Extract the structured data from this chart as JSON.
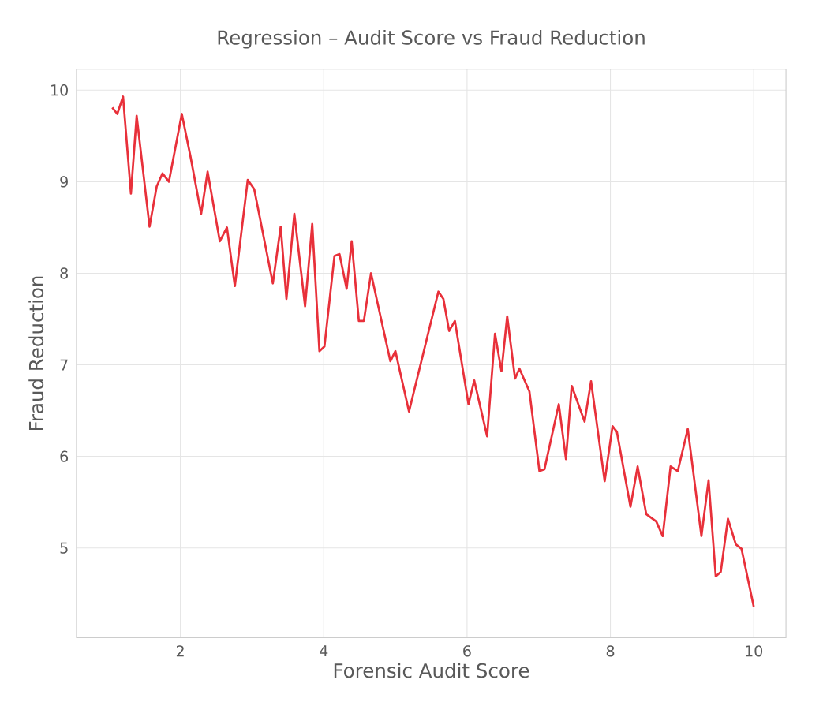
{
  "chart_data": {
    "type": "line",
    "title": "Regression – Audit Score vs Fraud Reduction",
    "xlabel": "Forensic Audit Score",
    "ylabel": "Fraud Reduction",
    "xlim": [
      0.55,
      10.45
    ],
    "ylim": [
      4.02,
      10.23
    ],
    "xticks": [
      2,
      4,
      6,
      8,
      10
    ],
    "yticks": [
      5,
      6,
      7,
      8,
      9,
      10
    ],
    "grid": true,
    "marker": "none",
    "line_style": "solid",
    "series": [
      {
        "color": "#e8303a",
        "x": [
          1.05,
          1.12,
          1.2,
          1.31,
          1.39,
          1.57,
          1.67,
          1.75,
          1.84,
          2.02,
          2.14,
          2.29,
          2.38,
          2.55,
          2.65,
          2.76,
          2.94,
          3.03,
          3.29,
          3.4,
          3.48,
          3.59,
          3.74,
          3.84,
          3.94,
          4.01,
          4.15,
          4.22,
          4.32,
          4.39,
          4.49,
          4.56,
          4.66,
          4.93,
          5.0,
          5.19,
          5.6,
          5.67,
          5.75,
          5.83,
          6.02,
          6.1,
          6.28,
          6.39,
          6.48,
          6.56,
          6.67,
          6.73,
          6.87,
          7.01,
          7.08,
          7.28,
          7.38,
          7.46,
          7.64,
          7.73,
          7.92,
          8.03,
          8.09,
          8.28,
          8.38,
          8.5,
          8.64,
          8.73,
          8.84,
          8.94,
          9.08,
          9.27,
          9.37,
          9.47,
          9.54,
          9.64,
          9.75,
          9.83,
          10.0
        ],
        "values": [
          9.81,
          9.74,
          9.93,
          8.87,
          9.72,
          8.51,
          8.95,
          9.09,
          9.0,
          9.74,
          9.28,
          8.65,
          9.11,
          8.35,
          8.5,
          7.86,
          9.02,
          8.92,
          7.89,
          8.51,
          7.72,
          8.65,
          7.64,
          8.54,
          7.15,
          7.2,
          8.19,
          8.21,
          7.83,
          8.35,
          7.48,
          7.48,
          8.0,
          7.04,
          7.15,
          6.49,
          7.8,
          7.72,
          7.37,
          7.48,
          6.57,
          6.83,
          6.22,
          7.34,
          6.93,
          7.53,
          6.85,
          6.96,
          6.71,
          5.84,
          5.86,
          6.57,
          5.97,
          6.77,
          6.38,
          6.82,
          5.73,
          6.33,
          6.27,
          5.45,
          5.89,
          5.37,
          5.29,
          5.13,
          5.89,
          5.84,
          6.3,
          5.13,
          5.74,
          4.69,
          4.74,
          5.32,
          5.04,
          4.99,
          4.36
        ]
      }
    ]
  }
}
